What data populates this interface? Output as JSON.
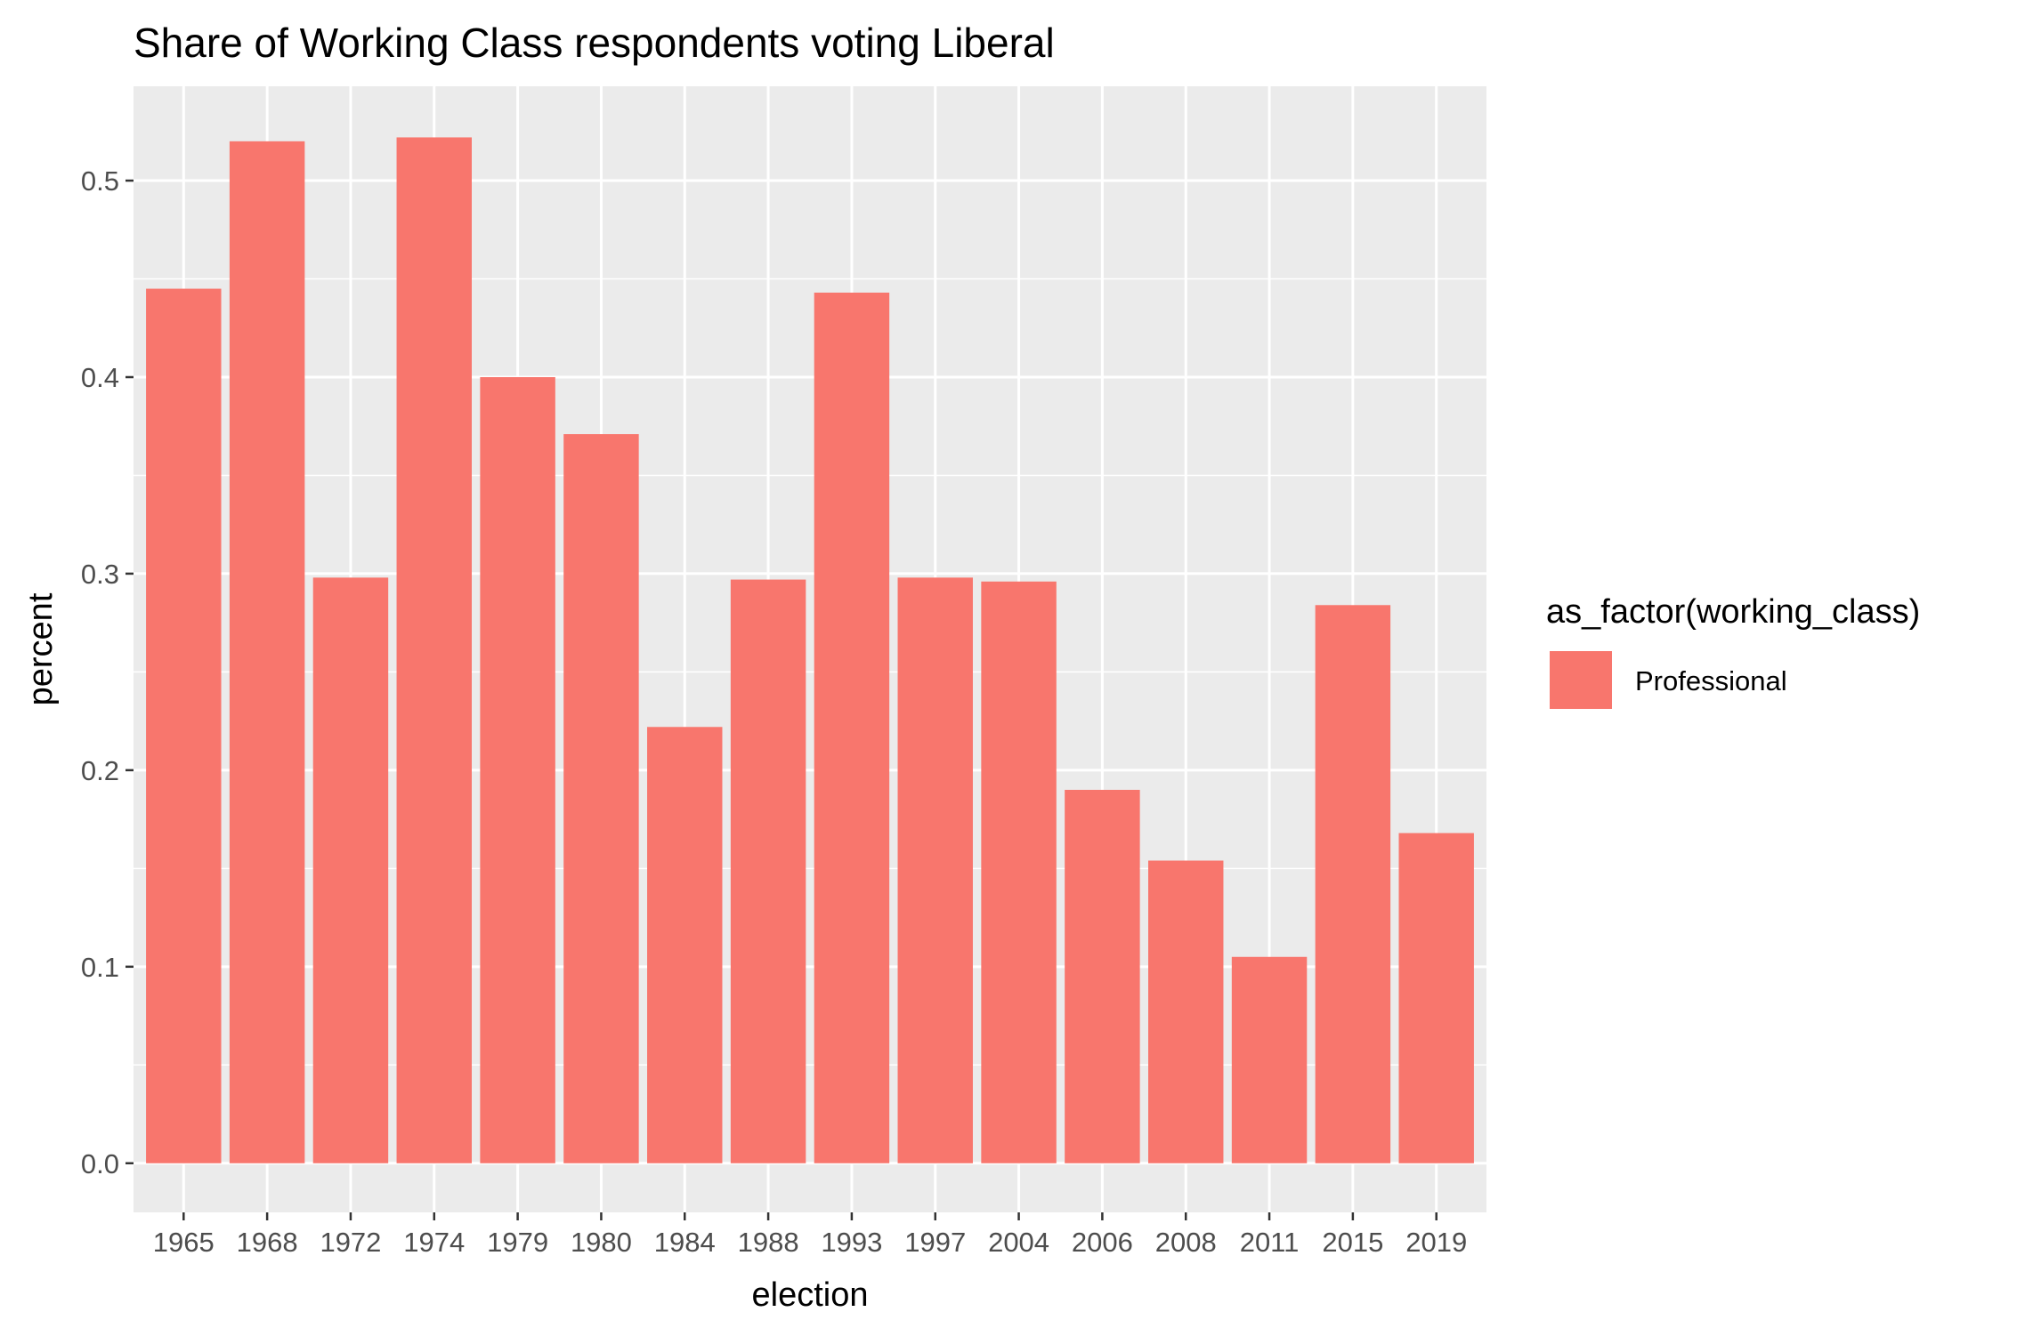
{
  "chart_data": {
    "type": "bar",
    "title": "Share of Working Class respondents voting Liberal",
    "xlabel": "election",
    "ylabel": "percent",
    "ylim": [
      -0.025,
      0.548
    ],
    "yticks": [
      "0.0",
      "0.1",
      "0.2",
      "0.3",
      "0.4",
      "0.5"
    ],
    "grid": true,
    "legend_position": "right",
    "legend_title": "as_factor(working_class)",
    "categories": [
      "1965",
      "1968",
      "1972",
      "1974",
      "1979",
      "1980",
      "1984",
      "1988",
      "1993",
      "1997",
      "2004",
      "2006",
      "2008",
      "2011",
      "2015",
      "2019"
    ],
    "series": [
      {
        "name": "Professional",
        "color": "#F8766D",
        "values": [
          0.445,
          0.52,
          0.298,
          0.522,
          0.4,
          0.371,
          0.222,
          0.297,
          0.443,
          0.298,
          0.296,
          0.19,
          0.154,
          0.105,
          0.284,
          0.168
        ]
      }
    ],
    "panel_color": "#EBEBEB",
    "grid_color": "#FFFFFF"
  }
}
